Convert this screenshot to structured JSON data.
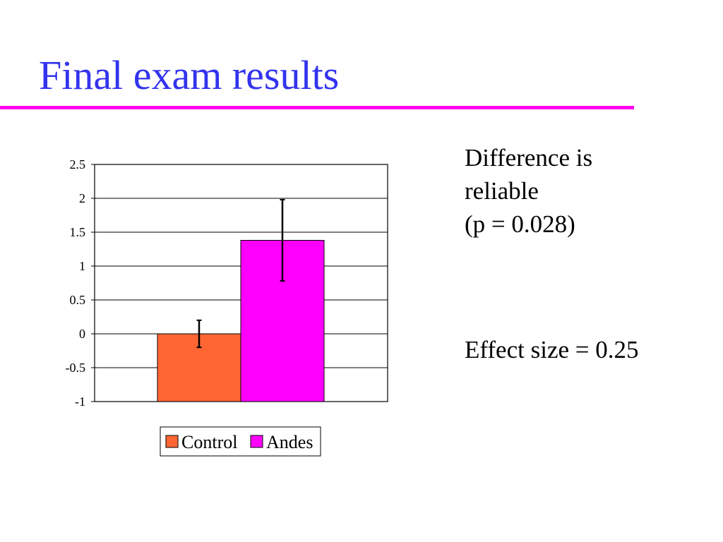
{
  "slide": {
    "title": "Final exam results",
    "colors": {
      "title": "#3333ee",
      "rule": "#ff00ee"
    }
  },
  "notes": {
    "line1": "Difference is",
    "line2": "reliable",
    "line3": "(p = 0.028)",
    "effect": "Effect size = 0.25"
  },
  "chart_data": {
    "type": "bar",
    "series": [
      {
        "name": "Control",
        "value": 0.0,
        "error": 0.2,
        "color": "#ff6633"
      },
      {
        "name": "Andes",
        "value": 1.38,
        "error": 0.6,
        "color": "#ff00ff"
      }
    ],
    "yticks": [
      "2.5",
      "2",
      "1.5",
      "1",
      "0.5",
      "0",
      "-0.5",
      "-1"
    ],
    "ylim": [
      -1,
      2.5
    ],
    "ystep": 0.5,
    "grid": true,
    "legend": "bottom-center"
  }
}
